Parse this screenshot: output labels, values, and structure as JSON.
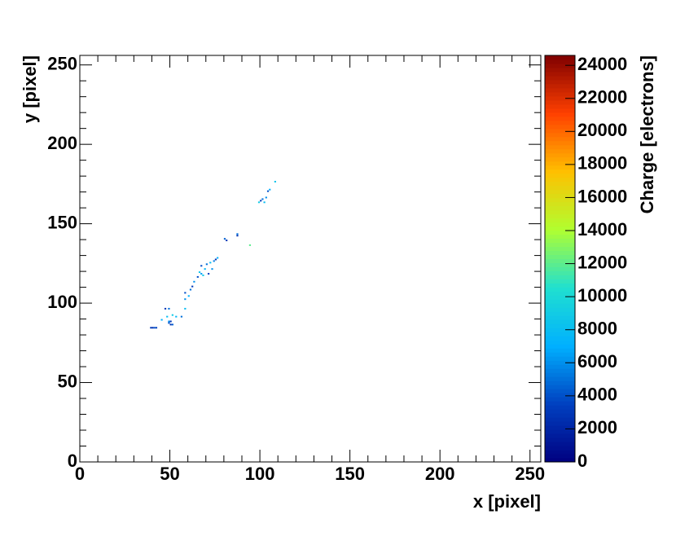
{
  "chart_data": {
    "type": "heatmap",
    "x_label": "x [pixel]",
    "y_label": "y [pixel]",
    "z_label": "Charge [electrons]",
    "xlim": [
      0,
      256
    ],
    "ylim": [
      0,
      256
    ],
    "zlim": [
      0,
      24600
    ],
    "xticks": [
      0,
      50,
      100,
      150,
      200,
      250
    ],
    "yticks": [
      0,
      50,
      100,
      150,
      200,
      250
    ],
    "zticks": [
      0,
      2000,
      4000,
      6000,
      8000,
      10000,
      12000,
      14000,
      16000,
      18000,
      20000,
      22000,
      24000
    ],
    "colorscale": [
      "#000080",
      "#0040c0",
      "#00b0ff",
      "#20e0d0",
      "#b0ff30",
      "#ffc000",
      "#ff4000",
      "#800000"
    ],
    "x": [
      39,
      40,
      41,
      42,
      45,
      47,
      49,
      48,
      49,
      50,
      49,
      50,
      51,
      51,
      53,
      56,
      58,
      58,
      58,
      60,
      61,
      62,
      63,
      65,
      66,
      67,
      68,
      67,
      69,
      70,
      71,
      72,
      73,
      74,
      75,
      76,
      80,
      81,
      87,
      87,
      94,
      99,
      100,
      101,
      102,
      103,
      104,
      105,
      108
    ],
    "y": [
      84,
      84,
      84,
      84,
      89,
      96,
      96,
      91,
      87,
      88,
      88,
      86,
      86,
      92,
      91,
      91,
      96,
      102,
      106,
      104,
      108,
      110,
      113,
      116,
      119,
      118,
      117,
      123,
      121,
      124,
      118,
      125,
      121,
      126,
      127,
      128,
      140,
      139,
      142,
      143,
      136,
      163,
      164,
      165,
      163,
      166,
      170,
      171,
      176
    ],
    "z": [
      3000,
      2500,
      4000,
      3500,
      7000,
      3000,
      5000,
      8000,
      4000,
      3000,
      6000,
      2500,
      4500,
      9000,
      7500,
      5000,
      8000,
      6000,
      4000,
      7000,
      5000,
      3000,
      6000,
      4000,
      8500,
      6500,
      9000,
      4000,
      7500,
      5000,
      3500,
      8000,
      6000,
      5500,
      3000,
      7000,
      4500,
      3000,
      2500,
      5000,
      12000,
      9000,
      3000,
      5000,
      8000,
      6000,
      4000,
      7000,
      8500
    ]
  }
}
